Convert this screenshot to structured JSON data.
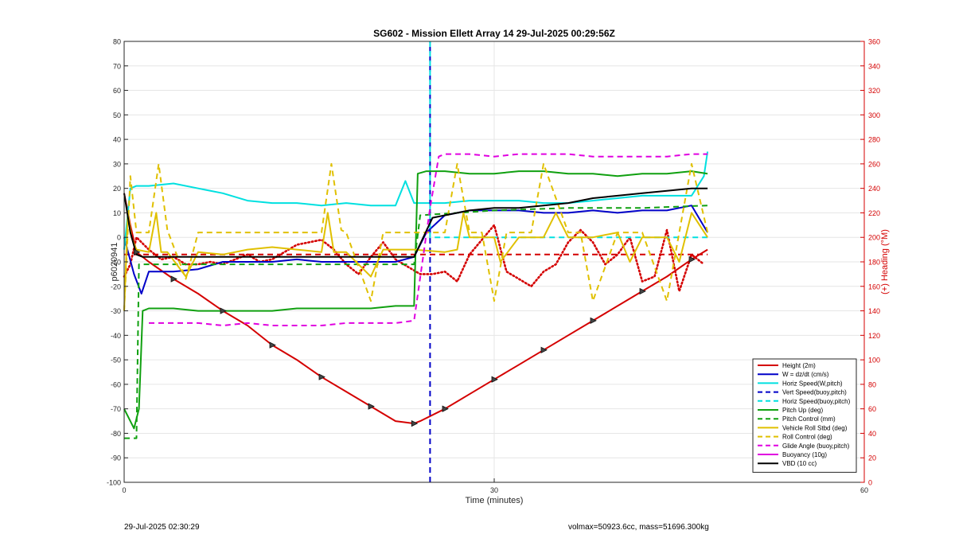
{
  "chart_data": {
    "type": "line",
    "title": "SG602 - Mission Ellett Array 14 29-Jul-2025 00:29:56Z",
    "xlabel": "Time (minutes)",
    "ylabel_left": "p6020941",
    "ylabel_right": "(+) Heading (°M)",
    "xlim": [
      0,
      60
    ],
    "ylim_left": [
      -100,
      80
    ],
    "ylim_right": [
      0,
      360
    ],
    "xticks": [
      "0",
      "30",
      "60"
    ],
    "yticks_left": [
      "80",
      "70",
      "60",
      "50",
      "40",
      "30",
      "20",
      "10",
      "0",
      "-10",
      "-20",
      "-30",
      "-40",
      "-50",
      "-60",
      "-70",
      "-80",
      "-90",
      "-100"
    ],
    "yticks_right": [
      "360",
      "340",
      "320",
      "300",
      "280",
      "260",
      "240",
      "220",
      "200",
      "180",
      "160",
      "140",
      "120",
      "100",
      "80",
      "60",
      "40",
      "20",
      "0"
    ],
    "grid": true,
    "legend_position": "bottom-right",
    "vertical_marker_x": 24.8,
    "series": [
      {
        "name": "Height (2m)",
        "color": "#d40000",
        "style": "solid",
        "axis": "left",
        "x": [
          0,
          0.5,
          1,
          2,
          4,
          6,
          8,
          10,
          12,
          14,
          16,
          18,
          20,
          22,
          23.5,
          24,
          26,
          28,
          30,
          32,
          34,
          36,
          38,
          40,
          42,
          44,
          46,
          47.3
        ],
        "y": [
          18,
          5,
          -6,
          -10,
          -17,
          -23,
          -30,
          -36,
          -44,
          -50,
          -57,
          -63,
          -69,
          -75,
          -76,
          -75,
          -70,
          -64,
          -58,
          -52,
          -46,
          -40,
          -34,
          -28,
          -22,
          -16,
          -9,
          -5
        ]
      },
      {
        "name": "W = dz/dt (cm/s)",
        "color": "#0000c8",
        "style": "solid",
        "axis": "left",
        "x": [
          0,
          0.8,
          1.4,
          2,
          4,
          6,
          8,
          10,
          12,
          14,
          16,
          18,
          20,
          22,
          23.5,
          24.5,
          26,
          28,
          30,
          32,
          34,
          36,
          38,
          40,
          42,
          44,
          46,
          47.3
        ],
        "y": [
          0,
          -15,
          -23,
          -14,
          -14,
          -13,
          -10,
          -10,
          -10,
          -9,
          -10,
          -10,
          -10,
          -10,
          -8,
          2,
          9,
          11,
          11,
          11,
          10,
          10,
          11,
          10,
          11,
          11,
          13,
          2
        ]
      },
      {
        "name": "Horiz Speed(W,pitch)",
        "color": "#00e0e0",
        "style": "solid",
        "axis": "left",
        "x": [
          0,
          0.5,
          1,
          2,
          4,
          6,
          8,
          10,
          12,
          14,
          16,
          18,
          20,
          22,
          22.8,
          23.5,
          24.5,
          26,
          28,
          30,
          32,
          34,
          36,
          38,
          40,
          42,
          44,
          46,
          47,
          47.3
        ],
        "y": [
          -5,
          20,
          21,
          21,
          22,
          20,
          18,
          15,
          14,
          14,
          13,
          14,
          13,
          13,
          23,
          14,
          14,
          14,
          15,
          15,
          15,
          14,
          14,
          15,
          16,
          17,
          17,
          17,
          25,
          35
        ]
      },
      {
        "name": "Vert Speed(buoy,pitch)",
        "color": "#0000c8",
        "style": "dashed",
        "axis": "left",
        "x": [
          24.8,
          24.8
        ],
        "y": [
          -100,
          80
        ]
      },
      {
        "name": "Horiz Speed(buoy,pitch)",
        "color": "#00e0e0",
        "style": "dashed",
        "axis": "left",
        "x": [
          24.8,
          24.8,
          28,
          47.3
        ],
        "y": [
          80,
          0,
          0,
          0
        ]
      },
      {
        "name": "Pitch Up (deg)",
        "color": "#10a010",
        "style": "solid",
        "axis": "left",
        "x": [
          0,
          0.8,
          1.2,
          1.5,
          2,
          4,
          6,
          8,
          10,
          12,
          14,
          16,
          18,
          20,
          22,
          23.5,
          23.8,
          24.5,
          26,
          28,
          30,
          32,
          34,
          36,
          38,
          40,
          42,
          44,
          46,
          47.3
        ],
        "y": [
          -70,
          -78,
          -70,
          -30,
          -29,
          -29,
          -30,
          -30,
          -30,
          -30,
          -29,
          -29,
          -29,
          -29,
          -28,
          -28,
          26,
          27,
          27,
          26,
          26,
          27,
          27,
          26,
          26,
          25,
          26,
          26,
          27,
          26
        ]
      },
      {
        "name": "Pitch Control (mm)",
        "color": "#10a010",
        "style": "dashed",
        "axis": "left",
        "x": [
          0,
          1,
          1.2,
          2,
          4,
          8,
          12,
          16,
          20,
          23.5,
          24,
          30,
          36,
          42,
          47.3
        ],
        "y": [
          -82,
          -82,
          -11,
          -11,
          -11,
          -11,
          -11,
          -11,
          -11,
          -11,
          9,
          11,
          12,
          12,
          13
        ]
      },
      {
        "name": "Vehicle Roll Stbd (deg)",
        "color": "#e0c000",
        "style": "solid",
        "axis": "left",
        "x": [
          0,
          0.3,
          0.6,
          1,
          2,
          2.6,
          3,
          3.5,
          5,
          6,
          8,
          10,
          12,
          14,
          16,
          16.5,
          17,
          18,
          20,
          21,
          22,
          23.5,
          26,
          27,
          27.5,
          28,
          30,
          30.5,
          32,
          34,
          35,
          36,
          38,
          40,
          41,
          42,
          44,
          45,
          46,
          47.3
        ],
        "y": [
          -30,
          10,
          0,
          -5,
          -6,
          10,
          -6,
          -6,
          -16,
          -6,
          -7,
          -5,
          -4,
          -5,
          -6,
          10,
          -6,
          -6,
          -16,
          -5,
          -5,
          -5,
          -6,
          -5,
          10,
          0,
          0,
          -10,
          0,
          0,
          10,
          0,
          0,
          2,
          -10,
          0,
          0,
          -10,
          10,
          0
        ]
      },
      {
        "name": "Roll Control (deg)",
        "color": "#e0c000",
        "style": "dashed",
        "axis": "left",
        "x": [
          0,
          0.5,
          1,
          2,
          2.8,
          3.5,
          5,
          6,
          8,
          10,
          12,
          14,
          16,
          16.8,
          17.6,
          18,
          20,
          21,
          22,
          23.5,
          24,
          26,
          27,
          28,
          29,
          30,
          31,
          33,
          34,
          36,
          37,
          38,
          40,
          41,
          42,
          44,
          45,
          46,
          47.3
        ],
        "y": [
          -30,
          25,
          2,
          2,
          30,
          3,
          -17,
          2,
          2,
          2,
          2,
          2,
          2,
          30,
          3,
          2,
          -26,
          2,
          2,
          2,
          2,
          2,
          30,
          2,
          2,
          -26,
          2,
          2,
          30,
          2,
          2,
          -26,
          2,
          2,
          2,
          -26,
          2,
          30,
          2
        ]
      },
      {
        "name": "Glide Angle (buoy,pitch)",
        "color": "#e000e0",
        "style": "dashed",
        "axis": "left",
        "x": [
          2,
          4,
          6,
          8,
          10,
          12,
          14,
          16,
          18,
          20,
          22,
          23.5,
          24.8,
          25.5,
          26,
          28,
          30,
          32,
          34,
          36,
          38,
          40,
          42,
          44,
          46,
          47.3
        ],
        "y": [
          -35,
          -35,
          -35,
          -36,
          -35,
          -36,
          -36,
          -36,
          -35,
          -35,
          -35,
          -34,
          12,
          33,
          34,
          34,
          33,
          34,
          34,
          34,
          33,
          33,
          33,
          33,
          34,
          34
        ]
      },
      {
        "name": "Buoyancy (10g)",
        "color": "#e000e0",
        "style": "solid",
        "axis": "left",
        "x": [],
        "y": []
      },
      {
        "name": "VBD (10 cc)",
        "color": "#000000",
        "style": "solid",
        "axis": "left",
        "x": [
          0,
          0.5,
          1,
          1.5,
          2,
          4,
          6,
          8,
          10,
          12,
          14,
          16,
          18,
          20,
          22,
          23.5,
          25,
          26,
          28,
          30,
          31,
          32,
          34,
          36,
          38,
          40,
          42,
          44,
          46,
          47.3
        ],
        "y": [
          18,
          2,
          -7,
          -8,
          -8,
          -8,
          -8,
          -8,
          -8,
          -8,
          -8,
          -8,
          -8,
          -8,
          -8,
          -8,
          8,
          9,
          11,
          12,
          12,
          12,
          13,
          14,
          16,
          17,
          18,
          19,
          20,
          20
        ]
      }
    ],
    "heading_series": [
      {
        "name": "Heading",
        "color": "#d40000",
        "style": "dotted",
        "axis": "right",
        "x": [
          0,
          0.5,
          1,
          2,
          3,
          4,
          5,
          6,
          7,
          8,
          9,
          10,
          11,
          12,
          13,
          14,
          15,
          16,
          17,
          18,
          19,
          20,
          21,
          22,
          23,
          24,
          25,
          26,
          27,
          28,
          29,
          30,
          31,
          32,
          33,
          34,
          35,
          36,
          37,
          38,
          39,
          40,
          41,
          42,
          43,
          44,
          45,
          46,
          47
        ],
        "y": [
          168,
          178,
          200,
          190,
          182,
          184,
          178,
          178,
          180,
          178,
          182,
          186,
          180,
          182,
          188,
          194,
          196,
          198,
          190,
          178,
          170,
          184,
          196,
          182,
          176,
          170,
          170,
          172,
          164,
          186,
          198,
          210,
          172,
          166,
          160,
          172,
          178,
          196,
          206,
          196,
          178,
          186,
          200,
          164,
          168,
          206,
          156,
          186,
          178
        ]
      },
      {
        "name": "Heading desired",
        "color": "#d40000",
        "style": "dashed",
        "axis": "right",
        "x": [
          0,
          47.3
        ],
        "y": [
          186,
          186
        ]
      }
    ],
    "legend": [
      "Height (2m)",
      "W = dz/dt (cm/s)",
      "Horiz Speed(W,pitch)",
      "Vert Speed(buoy,pitch)",
      "Horiz Speed(buoy,pitch)",
      "Pitch Up (deg)",
      "Pitch Control (mm)",
      "Vehicle Roll Stbd (deg)",
      "Roll Control (deg)",
      "Glide Angle (buoy,pitch)",
      "Buoyancy (10g)",
      "VBD (10 cc)"
    ]
  },
  "footer": {
    "timestamp": "29-Jul-2025 02:30:29",
    "stats": "volmax=50923.6cc, mass=51696.300kg"
  }
}
